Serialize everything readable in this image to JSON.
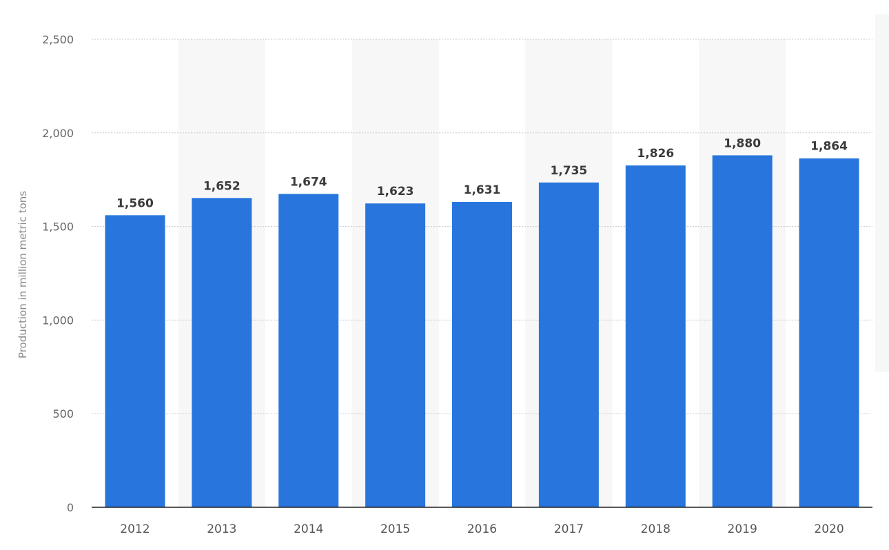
{
  "chart_data": {
    "type": "bar",
    "categories": [
      "2012",
      "2013",
      "2014",
      "2015",
      "2016",
      "2017",
      "2018",
      "2019",
      "2020"
    ],
    "values": [
      1560,
      1652,
      1674,
      1623,
      1631,
      1735,
      1826,
      1880,
      1864
    ],
    "value_labels": [
      "1,560",
      "1,652",
      "1,674",
      "1,623",
      "1,631",
      "1,735",
      "1,826",
      "1,880",
      "1,864"
    ],
    "ylabel": "Production in million metric tons",
    "xlabel": "",
    "ylim": [
      0,
      2500
    ],
    "yticks": [
      0,
      500,
      1000,
      1500,
      2000,
      2500
    ],
    "ytick_labels": [
      "0",
      "500",
      "1,000",
      "1,500",
      "2,000",
      "2,500"
    ],
    "grid": true,
    "legend": "none",
    "colors": {
      "bar": "#2876dd",
      "band": "#f7f7f7",
      "grid": "#c8c8c8",
      "axis": "#222222"
    }
  }
}
